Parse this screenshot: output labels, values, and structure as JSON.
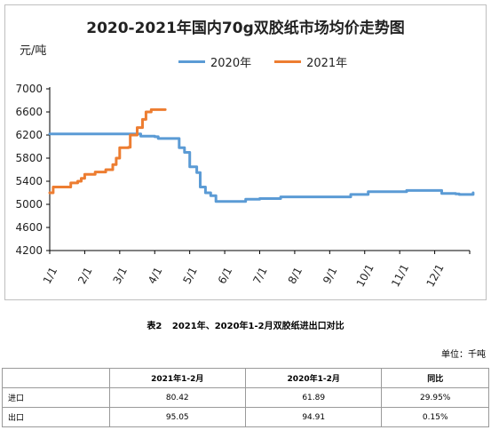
{
  "chart_data": {
    "type": "line",
    "title": "2020-2021年国内70g双胶纸市场均价走势图",
    "ylabel": "元/吨",
    "ylim": [
      4200,
      7000
    ],
    "yticks": [
      4200,
      4600,
      5000,
      5400,
      5800,
      6200,
      6600,
      7000
    ],
    "xticks": [
      "1/1",
      "2/1",
      "3/1",
      "4/1",
      "5/1",
      "6/1",
      "7/1",
      "8/1",
      "9/1",
      "10/1",
      "11/1",
      "12/1"
    ],
    "x_unit": "month offset from 1/1",
    "legend_position": "top",
    "grid": false,
    "series": [
      {
        "name": "2020年",
        "color": "#5b9bd5",
        "points": [
          [
            0,
            6220
          ],
          [
            2.0,
            6220
          ],
          [
            2.4,
            6220
          ],
          [
            2.6,
            6180
          ],
          [
            3.0,
            6170
          ],
          [
            3.1,
            6140
          ],
          [
            3.6,
            6140
          ],
          [
            3.7,
            5980
          ],
          [
            3.85,
            5900
          ],
          [
            4.0,
            5650
          ],
          [
            4.2,
            5550
          ],
          [
            4.3,
            5300
          ],
          [
            4.45,
            5200
          ],
          [
            4.6,
            5150
          ],
          [
            4.75,
            5050
          ],
          [
            5.0,
            5050
          ],
          [
            5.5,
            5050
          ],
          [
            5.6,
            5090
          ],
          [
            6.0,
            5100
          ],
          [
            6.5,
            5100
          ],
          [
            6.6,
            5130
          ],
          [
            7.5,
            5130
          ],
          [
            8.0,
            5130
          ],
          [
            8.5,
            5130
          ],
          [
            8.6,
            5170
          ],
          [
            9.0,
            5170
          ],
          [
            9.1,
            5220
          ],
          [
            10.0,
            5220
          ],
          [
            10.2,
            5240
          ],
          [
            11.0,
            5240
          ],
          [
            11.2,
            5190
          ],
          [
            11.6,
            5180
          ],
          [
            11.7,
            5170
          ],
          [
            12.0,
            5170
          ],
          [
            12.1,
            5200
          ]
        ]
      },
      {
        "name": "2021年",
        "color": "#ed7d31",
        "points": [
          [
            0,
            5200
          ],
          [
            0.1,
            5300
          ],
          [
            0.5,
            5300
          ],
          [
            0.6,
            5370
          ],
          [
            0.8,
            5400
          ],
          [
            0.9,
            5450
          ],
          [
            1.0,
            5520
          ],
          [
            1.3,
            5560
          ],
          [
            1.6,
            5600
          ],
          [
            1.8,
            5690
          ],
          [
            1.9,
            5800
          ],
          [
            2.0,
            5980
          ],
          [
            2.25,
            5990
          ],
          [
            2.3,
            6200
          ],
          [
            2.5,
            6330
          ],
          [
            2.65,
            6470
          ],
          [
            2.75,
            6600
          ],
          [
            2.9,
            6640
          ],
          [
            3.3,
            6640
          ]
        ]
      }
    ]
  },
  "table": {
    "label": "表2",
    "title": "2021年、2020年1-2月双胶纸进出口对比",
    "unit": "单位：千吨",
    "headers": [
      "",
      "2021年1-2月",
      "2020年1-2月",
      "同比"
    ],
    "rows": [
      {
        "label": "进口",
        "v2021": "80.42",
        "v2020": "61.89",
        "yoy": "29.95%"
      },
      {
        "label": "出口",
        "v2021": "95.05",
        "v2020": "94.91",
        "yoy": "0.15%"
      }
    ]
  }
}
